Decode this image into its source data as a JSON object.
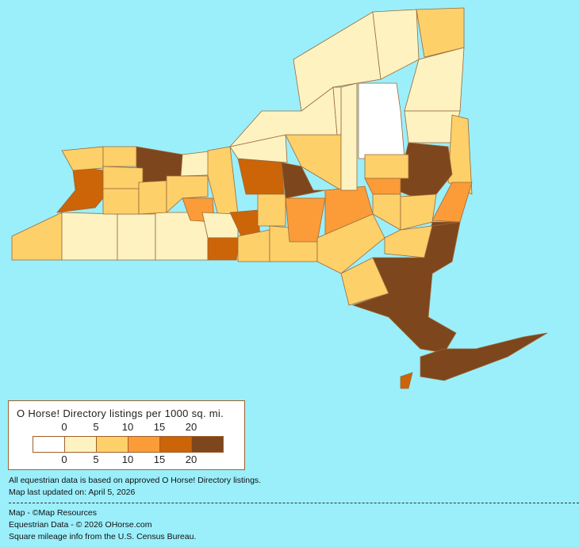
{
  "legend": {
    "title": "O Horse! Directory listings per 1000 sq. mi.",
    "ticks": [
      "0",
      "5",
      "10",
      "15",
      "20"
    ],
    "bin_colors": [
      "#FFFFFF",
      "#FDF2C0",
      "#FDD06A",
      "#FB9C38",
      "#CC6408",
      "#7E461C"
    ]
  },
  "map": {
    "background": "#9BEFFB",
    "border_color": "#9A6A3A",
    "region_bins": [
      2,
      1,
      1,
      1,
      4,
      2,
      2,
      5,
      2,
      2,
      2,
      2,
      1,
      3,
      2,
      1,
      4,
      4,
      2,
      4,
      1,
      2,
      2,
      5,
      3,
      2,
      3,
      2,
      1,
      0,
      1,
      1,
      2,
      1,
      1,
      1,
      1,
      2,
      5,
      2,
      3,
      3,
      2,
      2,
      5,
      2,
      2,
      5,
      5,
      4
    ]
  },
  "notes": {
    "line1": "All equestrian data is based on approved O Horse! Directory listings.",
    "line2": "Map last updated on: April 5, 2026",
    "credit1": "Map - ©Map Resources",
    "credit2": "Equestrian Data - © 2026 OHorse.com",
    "credit3": "Square mileage info from the U.S. Census Bureau."
  }
}
